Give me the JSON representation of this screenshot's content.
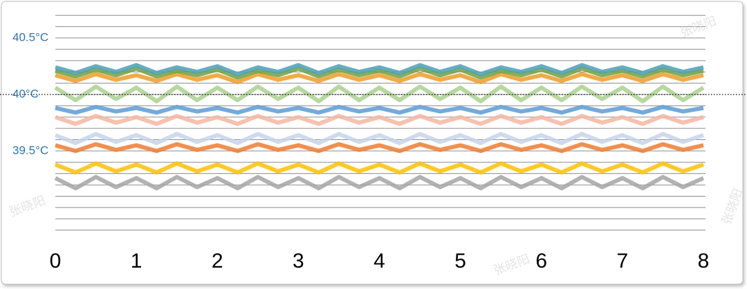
{
  "chart_data": {
    "type": "line",
    "watermark": "张晓阳",
    "x": [
      0,
      0.25,
      0.5,
      0.75,
      1,
      1.25,
      1.5,
      1.75,
      2,
      2.25,
      2.5,
      2.75,
      3,
      3.25,
      3.5,
      3.75,
      4,
      4.25,
      4.5,
      4.75,
      5,
      5.25,
      5.5,
      5.75,
      6,
      6.25,
      6.5,
      6.75,
      7,
      7.25,
      7.5,
      7.75,
      8
    ],
    "xlim": [
      0,
      8
    ],
    "xticks": [
      0,
      1,
      2,
      3,
      4,
      5,
      6,
      7,
      8
    ],
    "ylim": [
      38.7,
      40.72
    ],
    "yticks": [
      {
        "value": 40.5,
        "label": "40.5°C"
      },
      {
        "value": 40,
        "label": "40°C"
      },
      {
        "value": 39.5,
        "label": "39.5°C"
      }
    ],
    "minor_yticks": [
      38.8,
      38.9,
      39.0,
      39.1,
      39.2,
      39.3,
      39.4,
      39.6,
      39.7,
      39.8,
      39.9,
      40.1,
      40.2,
      40.3,
      40.4,
      40.6,
      40.7
    ],
    "reference_line": 40,
    "grid": true,
    "series": [
      {
        "color": "#a5a5a5",
        "values": [
          39.26,
          39.17,
          39.27,
          39.18,
          39.26,
          39.17,
          39.27,
          39.18,
          39.26,
          39.17,
          39.27,
          39.18,
          39.26,
          39.17,
          39.27,
          39.18,
          39.26,
          39.17,
          39.27,
          39.18,
          39.26,
          39.17,
          39.27,
          39.18,
          39.26,
          39.17,
          39.27,
          39.18,
          39.26,
          39.17,
          39.27,
          39.18,
          39.26
        ]
      },
      {
        "color": "#ffc000",
        "values": [
          39.38,
          39.31,
          39.39,
          39.32,
          39.38,
          39.31,
          39.39,
          39.32,
          39.38,
          39.31,
          39.39,
          39.32,
          39.38,
          39.31,
          39.39,
          39.32,
          39.38,
          39.31,
          39.39,
          39.32,
          39.38,
          39.31,
          39.39,
          39.32,
          39.38,
          39.31,
          39.39,
          39.32,
          39.38,
          39.31,
          39.39,
          39.32,
          39.38
        ]
      },
      {
        "color": "#ed7d31",
        "values": [
          39.55,
          39.5,
          39.56,
          39.51,
          39.55,
          39.5,
          39.56,
          39.51,
          39.55,
          39.5,
          39.56,
          39.51,
          39.55,
          39.5,
          39.56,
          39.51,
          39.55,
          39.5,
          39.56,
          39.51,
          39.55,
          39.5,
          39.56,
          39.51,
          39.55,
          39.5,
          39.56,
          39.51,
          39.55,
          39.5,
          39.56,
          39.51,
          39.55
        ]
      },
      {
        "color": "#c5d5ea",
        "values": [
          39.64,
          39.57,
          39.65,
          39.58,
          39.64,
          39.57,
          39.65,
          39.58,
          39.64,
          39.57,
          39.65,
          39.58,
          39.64,
          39.57,
          39.65,
          39.58,
          39.64,
          39.57,
          39.65,
          39.58,
          39.64,
          39.57,
          39.65,
          39.58,
          39.64,
          39.57,
          39.65,
          39.58,
          39.64,
          39.57,
          39.65,
          39.58,
          39.64
        ]
      },
      {
        "color": "#f4b6a0",
        "values": [
          39.8,
          39.74,
          39.81,
          39.75,
          39.8,
          39.74,
          39.81,
          39.75,
          39.8,
          39.74,
          39.81,
          39.75,
          39.8,
          39.74,
          39.81,
          39.75,
          39.8,
          39.74,
          39.81,
          39.75,
          39.8,
          39.74,
          39.81,
          39.75,
          39.8,
          39.74,
          39.81,
          39.75,
          39.8,
          39.74,
          39.81,
          39.75,
          39.8
        ]
      },
      {
        "color": "#5b9bd5",
        "values": [
          39.88,
          39.84,
          39.89,
          39.85,
          39.88,
          39.84,
          39.89,
          39.85,
          39.88,
          39.84,
          39.89,
          39.85,
          39.88,
          39.84,
          39.89,
          39.85,
          39.88,
          39.84,
          39.89,
          39.85,
          39.88,
          39.84,
          39.89,
          39.85,
          39.88,
          39.84,
          39.89,
          39.85,
          39.88,
          39.84,
          39.89,
          39.85,
          39.88
        ]
      },
      {
        "color": "#a9d18e",
        "values": [
          40.06,
          39.95,
          40.07,
          39.96,
          40.06,
          39.94,
          40.07,
          39.95,
          40.06,
          39.95,
          40.07,
          39.96,
          40.06,
          39.94,
          40.07,
          39.95,
          40.06,
          39.95,
          40.07,
          39.96,
          40.06,
          39.94,
          40.07,
          39.95,
          40.06,
          39.95,
          40.07,
          39.96,
          40.06,
          39.94,
          40.07,
          39.95,
          40.06
        ]
      },
      {
        "color": "#ed9c28",
        "values": [
          40.17,
          40.12,
          40.18,
          40.13,
          40.17,
          40.12,
          40.18,
          40.13,
          40.17,
          40.11,
          40.18,
          40.13,
          40.17,
          40.12,
          40.18,
          40.13,
          40.17,
          40.12,
          40.18,
          40.13,
          40.17,
          40.11,
          40.18,
          40.13,
          40.17,
          40.12,
          40.18,
          40.13,
          40.17,
          40.12,
          40.18,
          40.13,
          40.17
        ]
      },
      {
        "color": "#70a03e",
        "values": [
          40.21,
          40.16,
          40.22,
          40.17,
          40.23,
          40.16,
          40.21,
          40.17,
          40.22,
          40.15,
          40.21,
          40.17,
          40.23,
          40.16,
          40.22,
          40.17,
          40.21,
          40.16,
          40.23,
          40.17,
          40.22,
          40.15,
          40.21,
          40.17,
          40.22,
          40.16,
          40.23,
          40.17,
          40.21,
          40.16,
          40.22,
          40.17,
          40.21
        ]
      },
      {
        "color": "#4a9fb5",
        "values": [
          40.24,
          40.19,
          40.25,
          40.2,
          40.26,
          40.19,
          40.24,
          40.2,
          40.25,
          40.18,
          40.24,
          40.2,
          40.26,
          40.19,
          40.25,
          40.2,
          40.24,
          40.19,
          40.26,
          40.2,
          40.25,
          40.18,
          40.24,
          40.2,
          40.25,
          40.19,
          40.26,
          40.2,
          40.24,
          40.19,
          40.25,
          40.2,
          40.24
        ]
      }
    ]
  }
}
